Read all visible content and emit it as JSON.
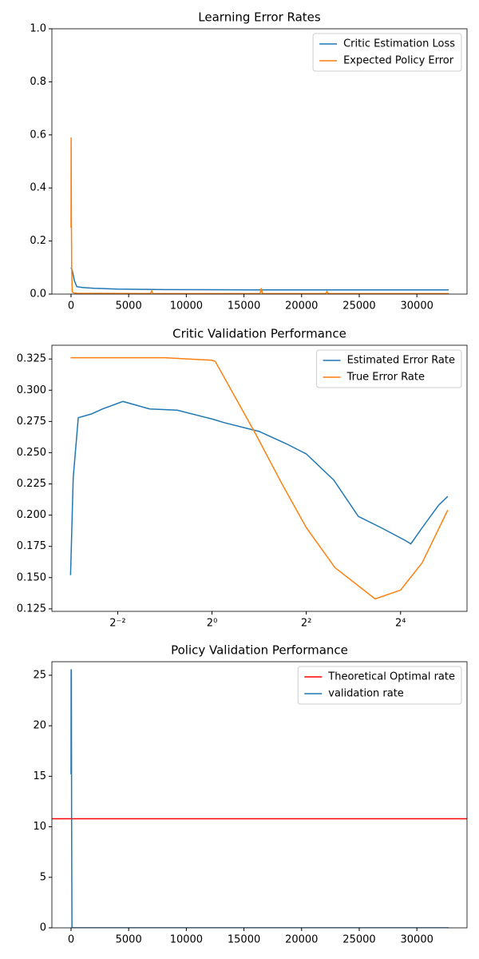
{
  "chart_data": [
    {
      "type": "line",
      "title": "Learning Error Rates",
      "xlim": [
        -1660,
        34350
      ],
      "ylim": [
        0,
        1
      ],
      "xticks": [
        0,
        5000,
        10000,
        15000,
        20000,
        25000,
        30000
      ],
      "yticks": [
        {
          "value": 0,
          "label": "0.0"
        },
        0.2,
        0.4,
        0.6,
        0.8,
        {
          "value": 1,
          "label": "1.0"
        }
      ],
      "legend": "upper right",
      "series": [
        {
          "name": "Critic Estimation Loss",
          "color": "#1f77b4",
          "x": [
            0,
            100,
            300,
            500,
            1000,
            2000,
            4000,
            8000,
            16000,
            24000,
            32768
          ],
          "values": [
            0.1,
            0.09,
            0.05,
            0.028,
            0.025,
            0.022,
            0.019,
            0.017,
            0.016,
            0.016,
            0.016
          ]
        },
        {
          "name": "Expected Policy Error",
          "color": "#ff7f0e",
          "x": [
            0,
            10,
            30,
            60,
            100,
            200,
            500,
            6900,
            7000,
            7100,
            16400,
            16500,
            16600,
            22100,
            22200,
            22300,
            32768
          ],
          "values": [
            0.25,
            0.59,
            0.3,
            0.1,
            0.01,
            0.005,
            0.003,
            0.002,
            0.012,
            0.002,
            0.002,
            0.022,
            0.002,
            0.002,
            0.01,
            0.002,
            0.002
          ]
        }
      ]
    },
    {
      "type": "line",
      "title": "Critic Validation Performance",
      "xscale": "log",
      "log_base": 2,
      "xlim": [
        0.095,
        42.5
      ],
      "ylim": [
        0.123,
        0.336
      ],
      "xticks": [
        {
          "value": 0.25,
          "label": "2⁻²"
        },
        {
          "value": 1,
          "label": "2⁰"
        },
        {
          "value": 4,
          "label": "2²"
        },
        {
          "value": 16,
          "label": "2⁴"
        }
      ],
      "yticks": [
        0.125,
        {
          "value": 0.15,
          "label": "0.150"
        },
        0.175,
        {
          "value": 0.2,
          "label": "0.200"
        },
        0.225,
        {
          "value": 0.25,
          "label": "0.250"
        },
        0.275,
        {
          "value": 0.3,
          "label": "0.300"
        },
        0.325
      ],
      "legend": "upper right",
      "series": [
        {
          "name": "Estimated Error Rate",
          "color": "#1f77b4",
          "x": [
            0.125,
            0.13,
            0.14,
            0.17,
            0.2,
            0.27,
            0.4,
            0.6,
            1,
            1.2,
            2,
            3,
            4,
            6,
            8.6,
            12,
            17,
            18.6,
            22,
            28,
            32
          ],
          "values": [
            0.152,
            0.23,
            0.278,
            0.281,
            0.285,
            0.291,
            0.285,
            0.284,
            0.277,
            0.274,
            0.267,
            0.257,
            0.249,
            0.228,
            0.199,
            0.19,
            0.18,
            0.177,
            0.19,
            0.208,
            0.215
          ]
        },
        {
          "name": "True Error Rate",
          "color": "#ff7f0e",
          "x": [
            0.125,
            0.5,
            1,
            1.05,
            1.9,
            2.8,
            4,
            6.1,
            11,
            16,
            22,
            32
          ],
          "values": [
            0.326,
            0.326,
            0.324,
            0.323,
            0.265,
            0.225,
            0.19,
            0.158,
            0.133,
            0.14,
            0.162,
            0.204
          ]
        }
      ]
    },
    {
      "type": "line",
      "title": "Policy Validation Performance",
      "xlim": [
        -1660,
        34350
      ],
      "ylim": [
        0,
        26.34
      ],
      "xticks": [
        0,
        5000,
        10000,
        15000,
        20000,
        25000,
        30000
      ],
      "yticks": [
        0,
        5,
        10,
        15,
        20,
        25
      ],
      "legend": "upper right",
      "series": [
        {
          "name": "Theoretical Optimal rate",
          "color": "#ff0000",
          "kind": "hline",
          "y": 10.8
        },
        {
          "name": "validation rate",
          "color": "#1f77b4",
          "x": [
            0,
            10,
            20,
            30,
            50,
            80,
            120,
            200,
            32768
          ],
          "values": [
            15.2,
            25.6,
            20,
            25.5,
            11,
            0.05,
            0,
            0,
            0
          ]
        }
      ]
    }
  ]
}
